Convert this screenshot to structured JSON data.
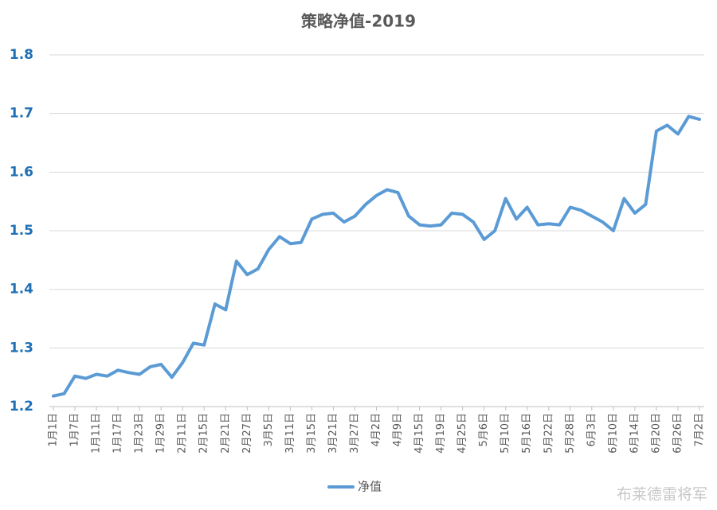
{
  "chart_data": {
    "type": "line",
    "title": "策略净值-2019",
    "categories": [
      "1月1日",
      null,
      "1月7日",
      null,
      "1月11日",
      null,
      "1月17日",
      null,
      "1月23日",
      null,
      "1月29日",
      null,
      "2月11日",
      null,
      "2月15日",
      null,
      "2月21日",
      null,
      "2月27日",
      null,
      "3月5日",
      null,
      "3月11日",
      null,
      "3月15日",
      null,
      "3月21日",
      null,
      "3月27日",
      null,
      "4月2日",
      null,
      "4月9日",
      null,
      "4月15日",
      null,
      "4月19日",
      null,
      "4月25日",
      null,
      "5月6日",
      null,
      "5月10日",
      null,
      "5月16日",
      null,
      "5月22日",
      null,
      "5月28日",
      null,
      "6月3日",
      null,
      "6月10日",
      null,
      "6月14日",
      null,
      "6月20日",
      null,
      "6月26日",
      null,
      "7月2日"
    ],
    "series": [
      {
        "name": "净值",
        "color": "#5b9bd5",
        "values": [
          1.218,
          1.222,
          1.252,
          1.248,
          1.255,
          1.252,
          1.262,
          1.258,
          1.255,
          1.268,
          1.272,
          1.25,
          1.275,
          1.308,
          1.305,
          1.375,
          1.365,
          1.448,
          1.425,
          1.435,
          1.468,
          1.49,
          1.478,
          1.48,
          1.52,
          1.528,
          1.53,
          1.515,
          1.525,
          1.545,
          1.56,
          1.57,
          1.565,
          1.525,
          1.51,
          1.508,
          1.51,
          1.53,
          1.528,
          1.515,
          1.485,
          1.5,
          1.555,
          1.52,
          1.54,
          1.51,
          1.512,
          1.51,
          1.54,
          1.535,
          1.525,
          1.515,
          1.5,
          1.555,
          1.53,
          1.545,
          1.67,
          1.68,
          1.665,
          1.695,
          1.69
        ]
      }
    ],
    "ylim": [
      1.2,
      1.8
    ],
    "yticks": [
      1.2,
      1.3,
      1.4,
      1.5,
      1.6,
      1.7,
      1.8
    ],
    "grid": true,
    "legend": "bottom",
    "watermark": "布莱德雷将军"
  }
}
